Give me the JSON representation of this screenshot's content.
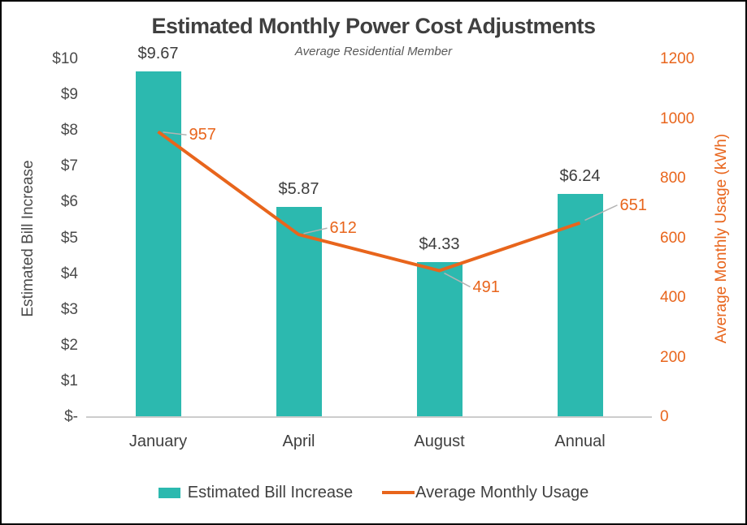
{
  "chart_data": {
    "type": "bar",
    "title": "Estimated Monthly Power Cost Adjustments",
    "subtitle": "Average Residential Member",
    "categories": [
      "January",
      "April",
      "August",
      "Annual"
    ],
    "series": [
      {
        "name": "Estimated Bill Increase",
        "kind": "bar",
        "axis": "left",
        "values": [
          9.67,
          5.87,
          4.33,
          6.24
        ],
        "data_labels": [
          "$9.67",
          "$5.87",
          "$4.33",
          "$6.24"
        ],
        "color": "#2cb9af"
      },
      {
        "name": "Average Monthly Usage",
        "kind": "line",
        "axis": "right",
        "values": [
          957,
          612,
          491,
          651
        ],
        "data_labels": [
          "957",
          "612",
          "491",
          "651"
        ],
        "color": "#e8651c"
      }
    ],
    "left_axis": {
      "title": "Estimated Bill Increase",
      "min": 0,
      "max": 10,
      "ticks": [
        "$10",
        "$9",
        "$8",
        "$7",
        "$6",
        "$5",
        "$4",
        "$3",
        "$2",
        "$1",
        "$-"
      ]
    },
    "right_axis": {
      "title": "Average Monthly Usage (kWh)",
      "min": 0,
      "max": 1200,
      "ticks": [
        "1200",
        "1000",
        "800",
        "600",
        "400",
        "200",
        "0"
      ]
    },
    "legend_position": "bottom",
    "grid": false
  },
  "colors": {
    "bar": "#2cb9af",
    "line": "#e8651c",
    "title_text": "#3f3f3f",
    "axis_text": "#4a4a4a",
    "leader_line": "#b3b3b3",
    "axis_line": "#cccccc"
  }
}
